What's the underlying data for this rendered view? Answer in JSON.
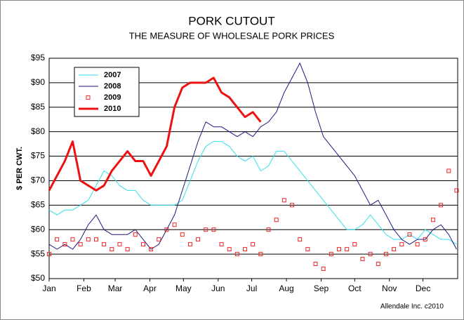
{
  "chart_data": {
    "type": "line",
    "title": "PORK CUTOUT",
    "subtitle": "THE MEASURE OF WHOLESALE PORK PRICES",
    "y_label": "$ PER CWT.",
    "footer": "Allendale Inc. c2010",
    "grid": true,
    "legend": "upper left",
    "xlim": [
      0,
      365
    ],
    "xticks": [
      {
        "value": 0,
        "label": "Jan"
      },
      {
        "value": 31,
        "label": "Feb"
      },
      {
        "value": 59,
        "label": "Mar"
      },
      {
        "value": 90,
        "label": "Apr"
      },
      {
        "value": 120,
        "label": "May"
      },
      {
        "value": 151,
        "label": "Jun"
      },
      {
        "value": 181,
        "label": "Jul"
      },
      {
        "value": 212,
        "label": "Aug"
      },
      {
        "value": 243,
        "label": "Sep"
      },
      {
        "value": 273,
        "label": "Oct"
      },
      {
        "value": 304,
        "label": "Nov"
      },
      {
        "value": 334,
        "label": "Dec"
      }
    ],
    "ylim": [
      50,
      95
    ],
    "yticks": [
      {
        "value": 50,
        "label": "$50"
      },
      {
        "value": 55,
        "label": "$55"
      },
      {
        "value": 60,
        "label": "$60"
      },
      {
        "value": 65,
        "label": "$65"
      },
      {
        "value": 70,
        "label": "$70"
      },
      {
        "value": 75,
        "label": "$75"
      },
      {
        "value": 80,
        "label": "$80"
      },
      {
        "value": 85,
        "label": "$85"
      },
      {
        "value": 90,
        "label": "$90"
      },
      {
        "value": 95,
        "label": "$95"
      }
    ],
    "x": [
      0,
      7,
      14,
      21,
      28,
      35,
      42,
      49,
      56,
      63,
      70,
      77,
      84,
      91,
      98,
      105,
      112,
      119,
      126,
      133,
      140,
      147,
      154,
      161,
      168,
      175,
      182,
      189,
      196,
      203,
      210,
      217,
      224,
      231,
      238,
      245,
      252,
      259,
      266,
      273,
      280,
      287,
      294,
      301,
      308,
      315,
      322,
      329,
      336,
      343,
      350,
      357,
      364
    ],
    "series": [
      {
        "name": "2007",
        "color": "#33e0e8",
        "style": "line",
        "width": 1,
        "values": [
          64,
          63,
          64,
          64,
          65,
          66,
          69,
          72,
          71,
          69,
          68,
          68,
          66,
          65,
          65,
          65,
          65,
          66,
          70,
          74,
          77,
          78,
          78,
          77,
          75,
          74,
          75,
          72,
          73,
          76,
          76,
          74,
          72,
          70,
          68,
          66,
          64,
          62,
          60,
          60,
          61,
          63,
          61,
          59,
          58,
          58,
          59,
          58,
          60,
          59,
          58,
          58,
          57
        ]
      },
      {
        "name": "2008",
        "color": "#1a1a80",
        "style": "line",
        "width": 1,
        "values": [
          57,
          56,
          57,
          56,
          58,
          61,
          63,
          60,
          59,
          59,
          59,
          60,
          58,
          56,
          57,
          60,
          63,
          68,
          73,
          78,
          82,
          81,
          81,
          80,
          79,
          80,
          79,
          81,
          82,
          84,
          88,
          91,
          94,
          90,
          84,
          79,
          77,
          75,
          73,
          71,
          68,
          65,
          66,
          63,
          60,
          58,
          57,
          58,
          58,
          60,
          61,
          59,
          56
        ]
      },
      {
        "name": "2009",
        "color": "#ee2222",
        "style": "marker",
        "width": 1,
        "values": [
          55,
          58,
          57,
          58,
          57,
          58,
          58,
          57,
          56,
          57,
          56,
          59,
          57,
          56,
          58,
          60,
          61,
          59,
          57,
          58,
          60,
          60,
          57,
          56,
          55,
          56,
          57,
          55,
          60,
          62,
          66,
          65,
          58,
          56,
          53,
          52,
          55,
          56,
          56,
          57,
          54,
          55,
          53,
          55,
          56,
          57,
          59,
          57,
          58,
          62,
          65,
          72,
          68
        ]
      },
      {
        "name": "2010",
        "color": "#ee1111",
        "style": "line",
        "width": 3,
        "values": [
          68,
          71,
          74,
          78,
          70,
          69,
          68,
          69,
          72,
          74,
          76,
          74,
          74,
          71,
          74,
          77,
          85,
          89,
          90,
          90,
          90,
          91,
          88,
          87,
          85,
          83,
          84,
          82,
          null,
          null,
          null,
          null,
          null,
          null,
          null,
          null,
          null,
          null,
          null,
          null,
          null,
          null,
          null,
          null,
          null,
          null,
          null,
          null,
          null,
          null,
          null,
          null,
          null
        ]
      }
    ]
  }
}
